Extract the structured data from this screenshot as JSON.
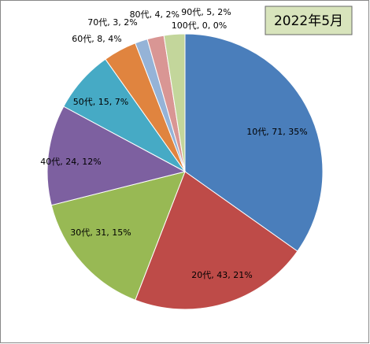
{
  "chart_data": {
    "type": "pie",
    "title": "2022年5月",
    "categories": [
      "10代",
      "20代",
      "30代",
      "40代",
      "50代",
      "60代",
      "70代",
      "80代",
      "90代",
      "100代"
    ],
    "values": [
      71,
      43,
      31,
      24,
      15,
      8,
      3,
      4,
      5,
      0
    ],
    "value_labels": [
      "10代, 71, 35%",
      "20代, 43, 21%",
      "30代, 31, 15%",
      "40代, 24, 12%",
      "50代, 15, 7%",
      "60代, 8, 4%",
      "70代, 3, 2%",
      "80代, 4, 2%",
      "90代, 5, 2%",
      "100代, 0, 0%"
    ],
    "colors": [
      "#4a7ebb",
      "#be4b48",
      "#98b954",
      "#7d60a0",
      "#46aac5",
      "#e0843f",
      "#95b3d7",
      "#d99694",
      "#c3d69b",
      "#f2b6c6"
    ]
  }
}
